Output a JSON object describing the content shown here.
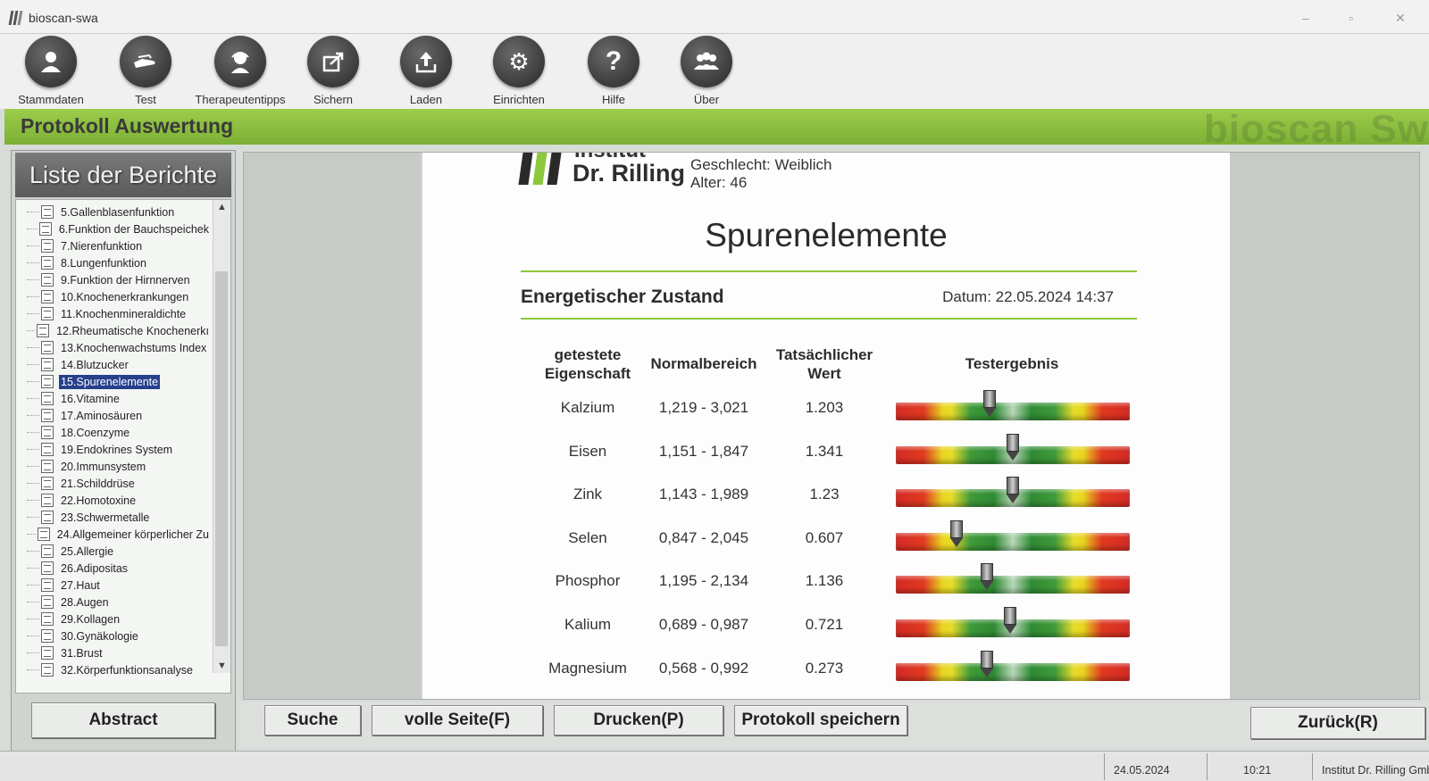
{
  "window": {
    "title": "bioscan-swa"
  },
  "toolbar": {
    "items": [
      {
        "label": "Stammdaten",
        "icon": "person-icon"
      },
      {
        "label": "Test",
        "icon": "hand-icon"
      },
      {
        "label": "Therapeutentipps",
        "icon": "therapist-icon"
      },
      {
        "label": "Sichern",
        "icon": "export-icon"
      },
      {
        "label": "Laden",
        "icon": "upload-icon"
      },
      {
        "label": "Einrichten",
        "icon": "gear-icon"
      },
      {
        "label": "Hilfe",
        "icon": "question-icon"
      },
      {
        "label": "Über",
        "icon": "group-icon"
      }
    ]
  },
  "header": {
    "title": "Protokoll Auswertung",
    "watermark": "bioscan Sw"
  },
  "sidebar": {
    "title": "Liste der Berichte",
    "items": [
      "5.Gallenblasenfunktion",
      "6.Funktion der Bauchspeichek",
      "7.Nierenfunktion",
      "8.Lungenfunktion",
      "9.Funktion der Hirnnerven",
      "10.Knochenerkrankungen",
      "11.Knochenmineraldichte",
      "12.Rheumatische Knochenerkı",
      "13.Knochenwachstums Index",
      "14.Blutzucker",
      "15.Spurenelemente",
      "16.Vitamine",
      "17.Aminosäuren",
      "18.Coenzyme",
      "19.Endokrines System",
      "20.Immunsystem",
      "21.Schilddrüse",
      "22.Homotoxine",
      "23.Schwermetalle",
      "24.Allgemeiner körperlicher Zu",
      "25.Allergie",
      "26.Adipositas",
      "27.Haut",
      "28.Augen",
      "29.Kollagen",
      "30.Gynäkologie",
      "31.Brust",
      "32.Körperfunktionsanalyse"
    ],
    "selected_index": 10,
    "abstract_button": "Abstract"
  },
  "report": {
    "logo_top": "Institut",
    "logo_name": "Dr. Rilling",
    "gender": "Geschlecht: Weiblich",
    "age": "Alter: 46",
    "title": "Spurenelemente",
    "subtitle": "Energetischer Zustand",
    "date": "Datum: 22.05.2024 14:37",
    "columns": [
      "getestete Eigenschaft",
      "Normalbereich",
      "Tatsächlicher Wert",
      "Testergebnis"
    ],
    "rows": [
      {
        "name": "Kalzium",
        "range": "1,219 - 3,021",
        "value": "1.203",
        "indicator": 0.4
      },
      {
        "name": "Eisen",
        "range": "1,151 - 1,847",
        "value": "1.341",
        "indicator": 0.5
      },
      {
        "name": "Zink",
        "range": "1,143 - 1,989",
        "value": "1.23",
        "indicator": 0.5
      },
      {
        "name": "Selen",
        "range": "0,847 - 2,045",
        "value": "0.607",
        "indicator": 0.26
      },
      {
        "name": "Phosphor",
        "range": "1,195 - 2,134",
        "value": "1.136",
        "indicator": 0.39
      },
      {
        "name": "Kalium",
        "range": "0,689 - 0,987",
        "value": "0.721",
        "indicator": 0.49
      },
      {
        "name": "Magnesium",
        "range": "0,568 - 0,992",
        "value": "0.273",
        "indicator": 0.39
      }
    ]
  },
  "actions": {
    "suche": "Suche",
    "volle_seite": "volle Seite(F)",
    "drucken": "Drucken(P)",
    "protokoll_speichern": "Protokoll speichern",
    "zurueck": "Zurück(R)"
  },
  "status": {
    "date": "24.05.2024",
    "time": "10:21",
    "company": "Institut Dr. Rilling GmbH"
  }
}
